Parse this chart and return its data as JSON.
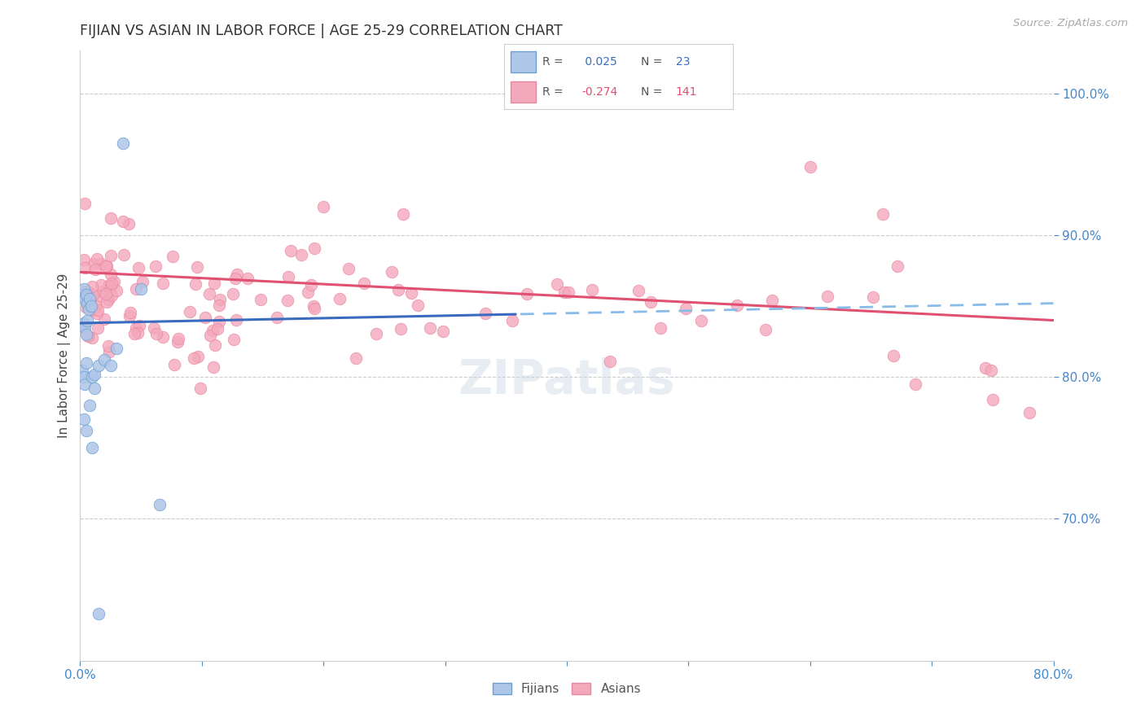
{
  "title": "FIJIAN VS ASIAN IN LABOR FORCE | AGE 25-29 CORRELATION CHART",
  "source": "Source: ZipAtlas.com",
  "ylabel_label": "In Labor Force | Age 25-29",
  "xlim": [
    0.0,
    0.8
  ],
  "ylim": [
    0.6,
    1.03
  ],
  "yticks_right": [
    0.7,
    0.8,
    0.9,
    1.0
  ],
  "ytick_right_labels": [
    "70.0%",
    "80.0%",
    "90.0%",
    "100.0%"
  ],
  "fijian_color": "#aec6e8",
  "asian_color": "#f4a8bc",
  "fijian_line_color": "#3a6bbf",
  "asian_line_color": "#e05070",
  "fijian_dash_color": "#88bbe8",
  "R_fijian": 0.025,
  "N_fijian": 23,
  "R_asian": -0.274,
  "N_asian": 141,
  "background_color": "#ffffff",
  "grid_color": "#cccccc",
  "title_color": "#333333",
  "right_axis_color": "#4488cc",
  "fijian_trend_x0": 0.0,
  "fijian_trend_y0": 0.838,
  "fijian_trend_x1": 0.8,
  "fijian_trend_y1": 0.852,
  "asian_trend_x0": 0.0,
  "asian_trend_y0": 0.874,
  "asian_trend_x1": 0.8,
  "asian_trend_y1": 0.84
}
